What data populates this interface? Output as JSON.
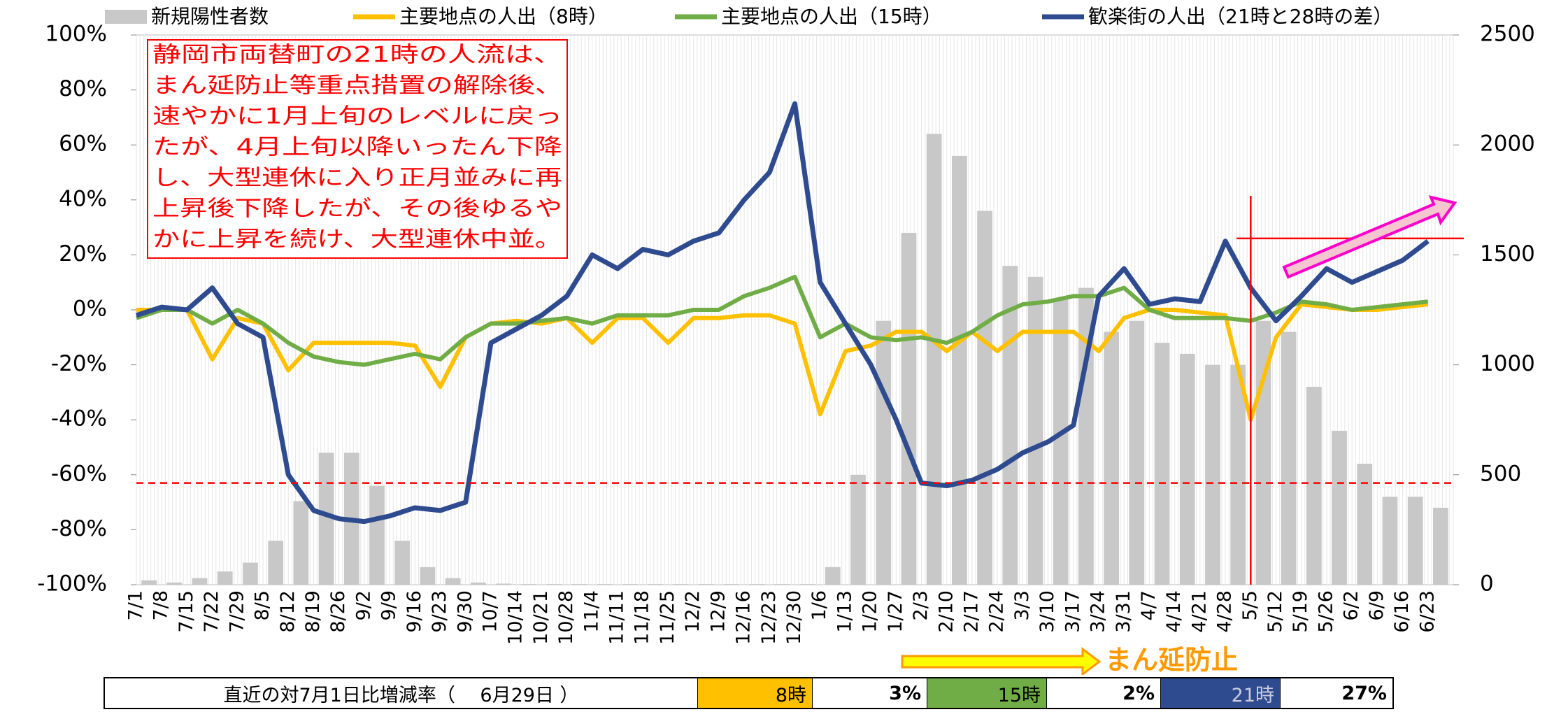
{
  "chart_data": {
    "type": "combo",
    "categories": [
      "7/1",
      "7/8",
      "7/15",
      "7/22",
      "7/29",
      "8/5",
      "8/12",
      "8/19",
      "8/26",
      "9/2",
      "9/9",
      "9/16",
      "9/23",
      "9/30",
      "10/7",
      "10/14",
      "10/21",
      "10/28",
      "11/4",
      "11/11",
      "11/18",
      "11/25",
      "12/2",
      "12/9",
      "12/16",
      "12/23",
      "12/30",
      "1/6",
      "1/13",
      "1/20",
      "1/27",
      "2/3",
      "2/10",
      "2/17",
      "2/24",
      "3/3",
      "3/10",
      "3/17",
      "3/24",
      "3/31",
      "4/7",
      "4/14",
      "4/21",
      "4/28",
      "5/5",
      "5/12",
      "5/19",
      "5/26",
      "6/2",
      "6/9",
      "6/16",
      "6/23"
    ],
    "series": [
      {
        "name": "新規陽性者数",
        "type": "bar",
        "axis": "y2",
        "color": "#c8c8c8",
        "values": [
          20,
          10,
          30,
          60,
          100,
          200,
          380,
          600,
          600,
          450,
          200,
          80,
          30,
          10,
          5,
          3,
          3,
          3,
          3,
          3,
          3,
          3,
          3,
          3,
          3,
          3,
          3,
          80,
          500,
          1200,
          1600,
          2050,
          1950,
          1700,
          1450,
          1400,
          1300,
          1350,
          1150,
          1200,
          1100,
          1050,
          1000,
          1000,
          1200,
          1150,
          900,
          700,
          550,
          400,
          400,
          350
        ]
      },
      {
        "name": "主要地点の人出（8時）",
        "type": "line",
        "color": "#ffc000",
        "values": [
          0,
          0,
          0,
          -18,
          -3,
          -5,
          -22,
          -12,
          -12,
          -12,
          -12,
          -13,
          -28,
          -10,
          -5,
          -4,
          -5,
          -3,
          -12,
          -3,
          -3,
          -12,
          -3,
          -3,
          -2,
          -2,
          -5,
          -38,
          -15,
          -13,
          -8,
          -8,
          -15,
          -8,
          -15,
          -8,
          -8,
          -8,
          -15,
          -3,
          0,
          0,
          -1,
          -2,
          -40,
          -10,
          2,
          1,
          0,
          0,
          1,
          2
        ]
      },
      {
        "name": "主要地点の人出（15時）",
        "type": "line",
        "color": "#70ad47",
        "values": [
          -3,
          0,
          0,
          -5,
          0,
          -5,
          -12,
          -17,
          -19,
          -20,
          -18,
          -16,
          -18,
          -10,
          -5,
          -5,
          -4,
          -3,
          -5,
          -2,
          -2,
          -2,
          0,
          0,
          5,
          8,
          12,
          -10,
          -5,
          -10,
          -11,
          -10,
          -12,
          -8,
          -2,
          2,
          3,
          5,
          5,
          8,
          0,
          -3,
          -3,
          -3,
          -4,
          -1,
          3,
          2,
          0,
          1,
          2,
          3
        ]
      },
      {
        "name": "歓楽街の人出（21時と28時の差）",
        "type": "line",
        "color": "#2f4b8f",
        "values": [
          -2,
          1,
          0,
          8,
          -5,
          -10,
          -60,
          -73,
          -76,
          -77,
          -75,
          -72,
          -73,
          -70,
          -12,
          -7,
          -2,
          5,
          20,
          15,
          22,
          20,
          25,
          28,
          40,
          50,
          75,
          10,
          -5,
          -20,
          -40,
          -63,
          -64,
          -62,
          -58,
          -52,
          -48,
          -42,
          5,
          15,
          2,
          4,
          3,
          25,
          8,
          -4,
          5,
          15,
          10,
          14,
          18,
          25
        ]
      }
    ],
    "ylim": [
      -100,
      100
    ],
    "yticks": [
      {
        "value": -100,
        "label": "-100%"
      },
      {
        "value": -80,
        "label": "-80%"
      },
      {
        "value": -60,
        "label": "-60%"
      },
      {
        "value": -40,
        "label": "-40%"
      },
      {
        "value": -20,
        "label": "-20%"
      },
      {
        "value": 0,
        "label": "0%"
      },
      {
        "value": 20,
        "label": "20%"
      },
      {
        "value": 40,
        "label": "40%"
      },
      {
        "value": 60,
        "label": "60%"
      },
      {
        "value": 80,
        "label": "80%"
      },
      {
        "value": 100,
        "label": "100%"
      }
    ],
    "y2lim": [
      0,
      2500
    ],
    "y2ticks": [
      0,
      500,
      1000,
      1500,
      2000,
      2500
    ],
    "grid": true,
    "hlines": [
      {
        "value": -63,
        "color": "#ff0000"
      }
    ],
    "marker": {
      "x": "5/5",
      "y": 26,
      "color": "#ff0000"
    },
    "annotation": {
      "lines": [
        "静岡市両替町の21時の人流は、",
        "まん延防止等重点措置の解除後、",
        "速やかに1月上旬のレベルに戻っ",
        "たが、4月上旬以降いったん下降",
        "し、大型連休に入り正月並みに再",
        "上昇後下降したが、その後ゆるや",
        "かに上昇を続け、大型連休中並。"
      ],
      "color": "#ff0000"
    },
    "period_label": "まん延防止"
  },
  "table": {
    "cells": [
      "直近の対7月1日比増減率（　 6月29日 ）",
      "8時",
      "3%",
      "15時",
      "2%",
      "21時",
      "27%"
    ]
  }
}
